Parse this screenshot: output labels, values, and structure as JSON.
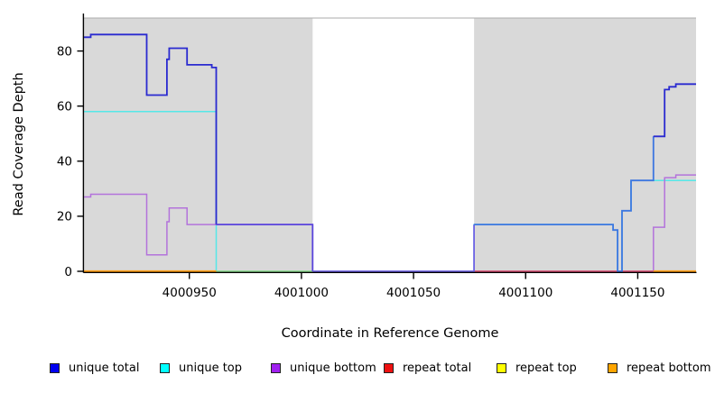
{
  "chart_data": {
    "type": "line",
    "style": "step-coverage-plot",
    "xlabel": "Coordinate in Reference Genome",
    "ylabel": "Read Coverage Depth",
    "x_ticks": [
      4000950,
      4001000,
      4001050,
      4001100,
      4001150
    ],
    "y_ticks": [
      0,
      20,
      40,
      60,
      80
    ],
    "xlim": [
      4000903,
      4001176
    ],
    "ylim": [
      0,
      92
    ],
    "grid": false,
    "legend_position": "bottom",
    "panel_background_regions": [
      {
        "x_start": 4000903,
        "x_end": 4001005,
        "color": "#D9D9D9"
      },
      {
        "x_start": 4001077,
        "x_end": 4001176,
        "color": "#D9D9D9"
      }
    ],
    "panel_top_edge_color": "#ABABAB",
    "series": [
      {
        "name": "unique total",
        "legend_color": "#0000F0",
        "line_color": "#2A2AD0",
        "segments": [
          {
            "color": "#2A2AD0",
            "points": [
              [
                4000903,
                85
              ],
              [
                4000906,
                85
              ],
              [
                4000906,
                86
              ],
              [
                4000931,
                86
              ],
              [
                4000931,
                64
              ],
              [
                4000940,
                64
              ],
              [
                4000940,
                77
              ],
              [
                4000941,
                77
              ],
              [
                4000941,
                81
              ],
              [
                4000949,
                81
              ],
              [
                4000949,
                75
              ],
              [
                4000960,
                75
              ],
              [
                4000960,
                74
              ],
              [
                4000962,
                74
              ],
              [
                4000962,
                17
              ]
            ]
          },
          {
            "color": "#5B46DC",
            "points": [
              [
                4000962,
                17
              ],
              [
                4001005,
                17
              ],
              [
                4001005,
                0
              ]
            ]
          },
          {
            "color": "#7163E4",
            "points": [
              [
                4001005,
                0
              ],
              [
                4001077,
                0
              ],
              [
                4001077,
                17
              ]
            ]
          },
          {
            "color": "#3D77E0",
            "points": [
              [
                4001077,
                17
              ],
              [
                4001139,
                17
              ],
              [
                4001139,
                15
              ],
              [
                4001141,
                15
              ],
              [
                4001141,
                0
              ],
              [
                4001143,
                0
              ],
              [
                4001143,
                22
              ],
              [
                4001147,
                22
              ],
              [
                4001147,
                33
              ],
              [
                4001157,
                33
              ],
              [
                4001157,
                49
              ]
            ]
          },
          {
            "color": "#2A2AD0",
            "points": [
              [
                4001157,
                49
              ],
              [
                4001162,
                49
              ],
              [
                4001162,
                66
              ],
              [
                4001164,
                66
              ],
              [
                4001164,
                67
              ],
              [
                4001167,
                67
              ],
              [
                4001167,
                68
              ],
              [
                4001176,
                68
              ]
            ]
          }
        ]
      },
      {
        "name": "unique top",
        "legend_color": "#00FFFF",
        "line_color": "#55E8E8",
        "segments": [
          {
            "points": [
              [
                4000903,
                58
              ],
              [
                4000962,
                58
              ],
              [
                4000962,
                0
              ],
              [
                4001077,
                0
              ],
              [
                4001077,
                17
              ],
              [
                4001139,
                17
              ],
              [
                4001139,
                15
              ],
              [
                4001141,
                15
              ],
              [
                4001141,
                0
              ],
              [
                4001143,
                0
              ],
              [
                4001143,
                22
              ],
              [
                4001147,
                22
              ],
              [
                4001147,
                33
              ],
              [
                4001176,
                33
              ]
            ]
          }
        ]
      },
      {
        "name": "unique bottom",
        "legend_color": "#A020F0",
        "line_color": "#B373DB",
        "segments": [
          {
            "points": [
              [
                4000903,
                27
              ],
              [
                4000906,
                27
              ],
              [
                4000906,
                28
              ],
              [
                4000931,
                28
              ],
              [
                4000931,
                6
              ],
              [
                4000940,
                6
              ],
              [
                4000940,
                18
              ],
              [
                4000941,
                18
              ],
              [
                4000941,
                23
              ],
              [
                4000949,
                23
              ],
              [
                4000949,
                17
              ],
              [
                4001005,
                17
              ],
              [
                4001005,
                0
              ],
              [
                4001157,
                0
              ],
              [
                4001157,
                16
              ],
              [
                4001162,
                16
              ],
              [
                4001162,
                34
              ],
              [
                4001167,
                34
              ],
              [
                4001167,
                35
              ],
              [
                4001176,
                35
              ]
            ]
          }
        ]
      },
      {
        "name": "repeat total",
        "legend_color": "#EE1111",
        "line_color": "#D84F6E",
        "segments": [
          {
            "points": [
              [
                4001077,
                0
              ],
              [
                4001157,
                0
              ]
            ]
          }
        ]
      },
      {
        "name": "repeat top",
        "legend_color": "#FFFF00",
        "line_color": "#8FD88A",
        "segments": [
          {
            "points": [
              [
                4000962,
                0
              ],
              [
                4001005,
                0
              ]
            ]
          }
        ]
      },
      {
        "name": "repeat bottom",
        "legend_color": "#FFA500",
        "line_color": "#FF9E14",
        "segments": [
          {
            "points": [
              [
                4000903,
                0
              ],
              [
                4000962,
                0
              ]
            ]
          },
          {
            "points": [
              [
                4001157,
                0
              ],
              [
                4001176,
                0
              ]
            ]
          }
        ]
      }
    ]
  },
  "legend": {
    "item_x_positions": [
      55,
      177,
      300,
      425,
      550,
      673
    ]
  }
}
